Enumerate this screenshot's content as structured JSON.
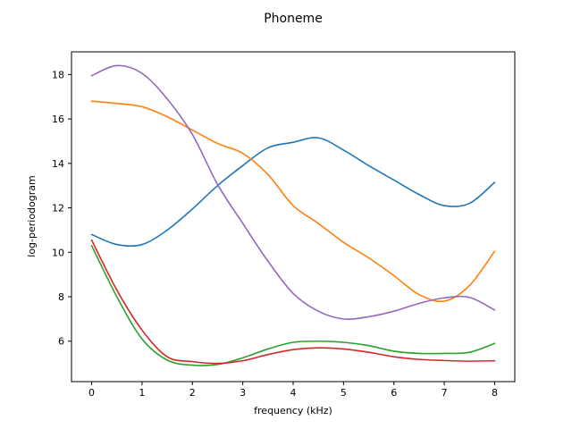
{
  "figure_title": "Phoneme",
  "chart_data": {
    "type": "line",
    "title": "Phoneme",
    "xlabel": "frequency (kHz)",
    "ylabel": "log-periodogram",
    "xlim": [
      -0.4,
      8.4
    ],
    "ylim": [
      4.18,
      19.02
    ],
    "xticks": [
      0,
      1,
      2,
      3,
      4,
      5,
      6,
      7,
      8
    ],
    "yticks": [
      6,
      8,
      10,
      12,
      14,
      16,
      18
    ],
    "grid": false,
    "legend": "none",
    "x": [
      0,
      0.5,
      1,
      1.5,
      2,
      2.5,
      3,
      3.5,
      4,
      4.5,
      5,
      5.5,
      6,
      6.5,
      7,
      7.5,
      8
    ],
    "series": [
      {
        "name": "series-blue",
        "color": "#1f77b4",
        "values": [
          10.8,
          10.35,
          10.35,
          11.0,
          11.95,
          13.0,
          13.9,
          14.7,
          14.95,
          15.15,
          14.6,
          13.9,
          13.25,
          12.6,
          12.1,
          12.2,
          13.15
        ]
      },
      {
        "name": "series-orange",
        "color": "#ff7f0e",
        "values": [
          16.8,
          16.7,
          16.55,
          16.1,
          15.5,
          14.9,
          14.45,
          13.5,
          12.1,
          11.3,
          10.45,
          9.75,
          8.95,
          8.1,
          7.8,
          8.5,
          10.05
        ]
      },
      {
        "name": "series-green",
        "color": "#2ca02c",
        "values": [
          10.3,
          8.0,
          6.1,
          5.15,
          4.92,
          4.95,
          5.25,
          5.65,
          5.95,
          6.0,
          5.95,
          5.8,
          5.55,
          5.45,
          5.45,
          5.5,
          5.9
        ]
      },
      {
        "name": "series-red",
        "color": "#d62728",
        "values": [
          10.55,
          8.3,
          6.5,
          5.3,
          5.08,
          5.0,
          5.12,
          5.4,
          5.62,
          5.7,
          5.65,
          5.5,
          5.3,
          5.18,
          5.13,
          5.1,
          5.12
        ]
      },
      {
        "name": "series-purple",
        "color": "#9467bd",
        "values": [
          17.95,
          18.4,
          18.05,
          16.9,
          15.3,
          13.05,
          11.3,
          9.6,
          8.15,
          7.35,
          7.0,
          7.1,
          7.35,
          7.7,
          7.95,
          7.97,
          7.4
        ]
      }
    ]
  }
}
